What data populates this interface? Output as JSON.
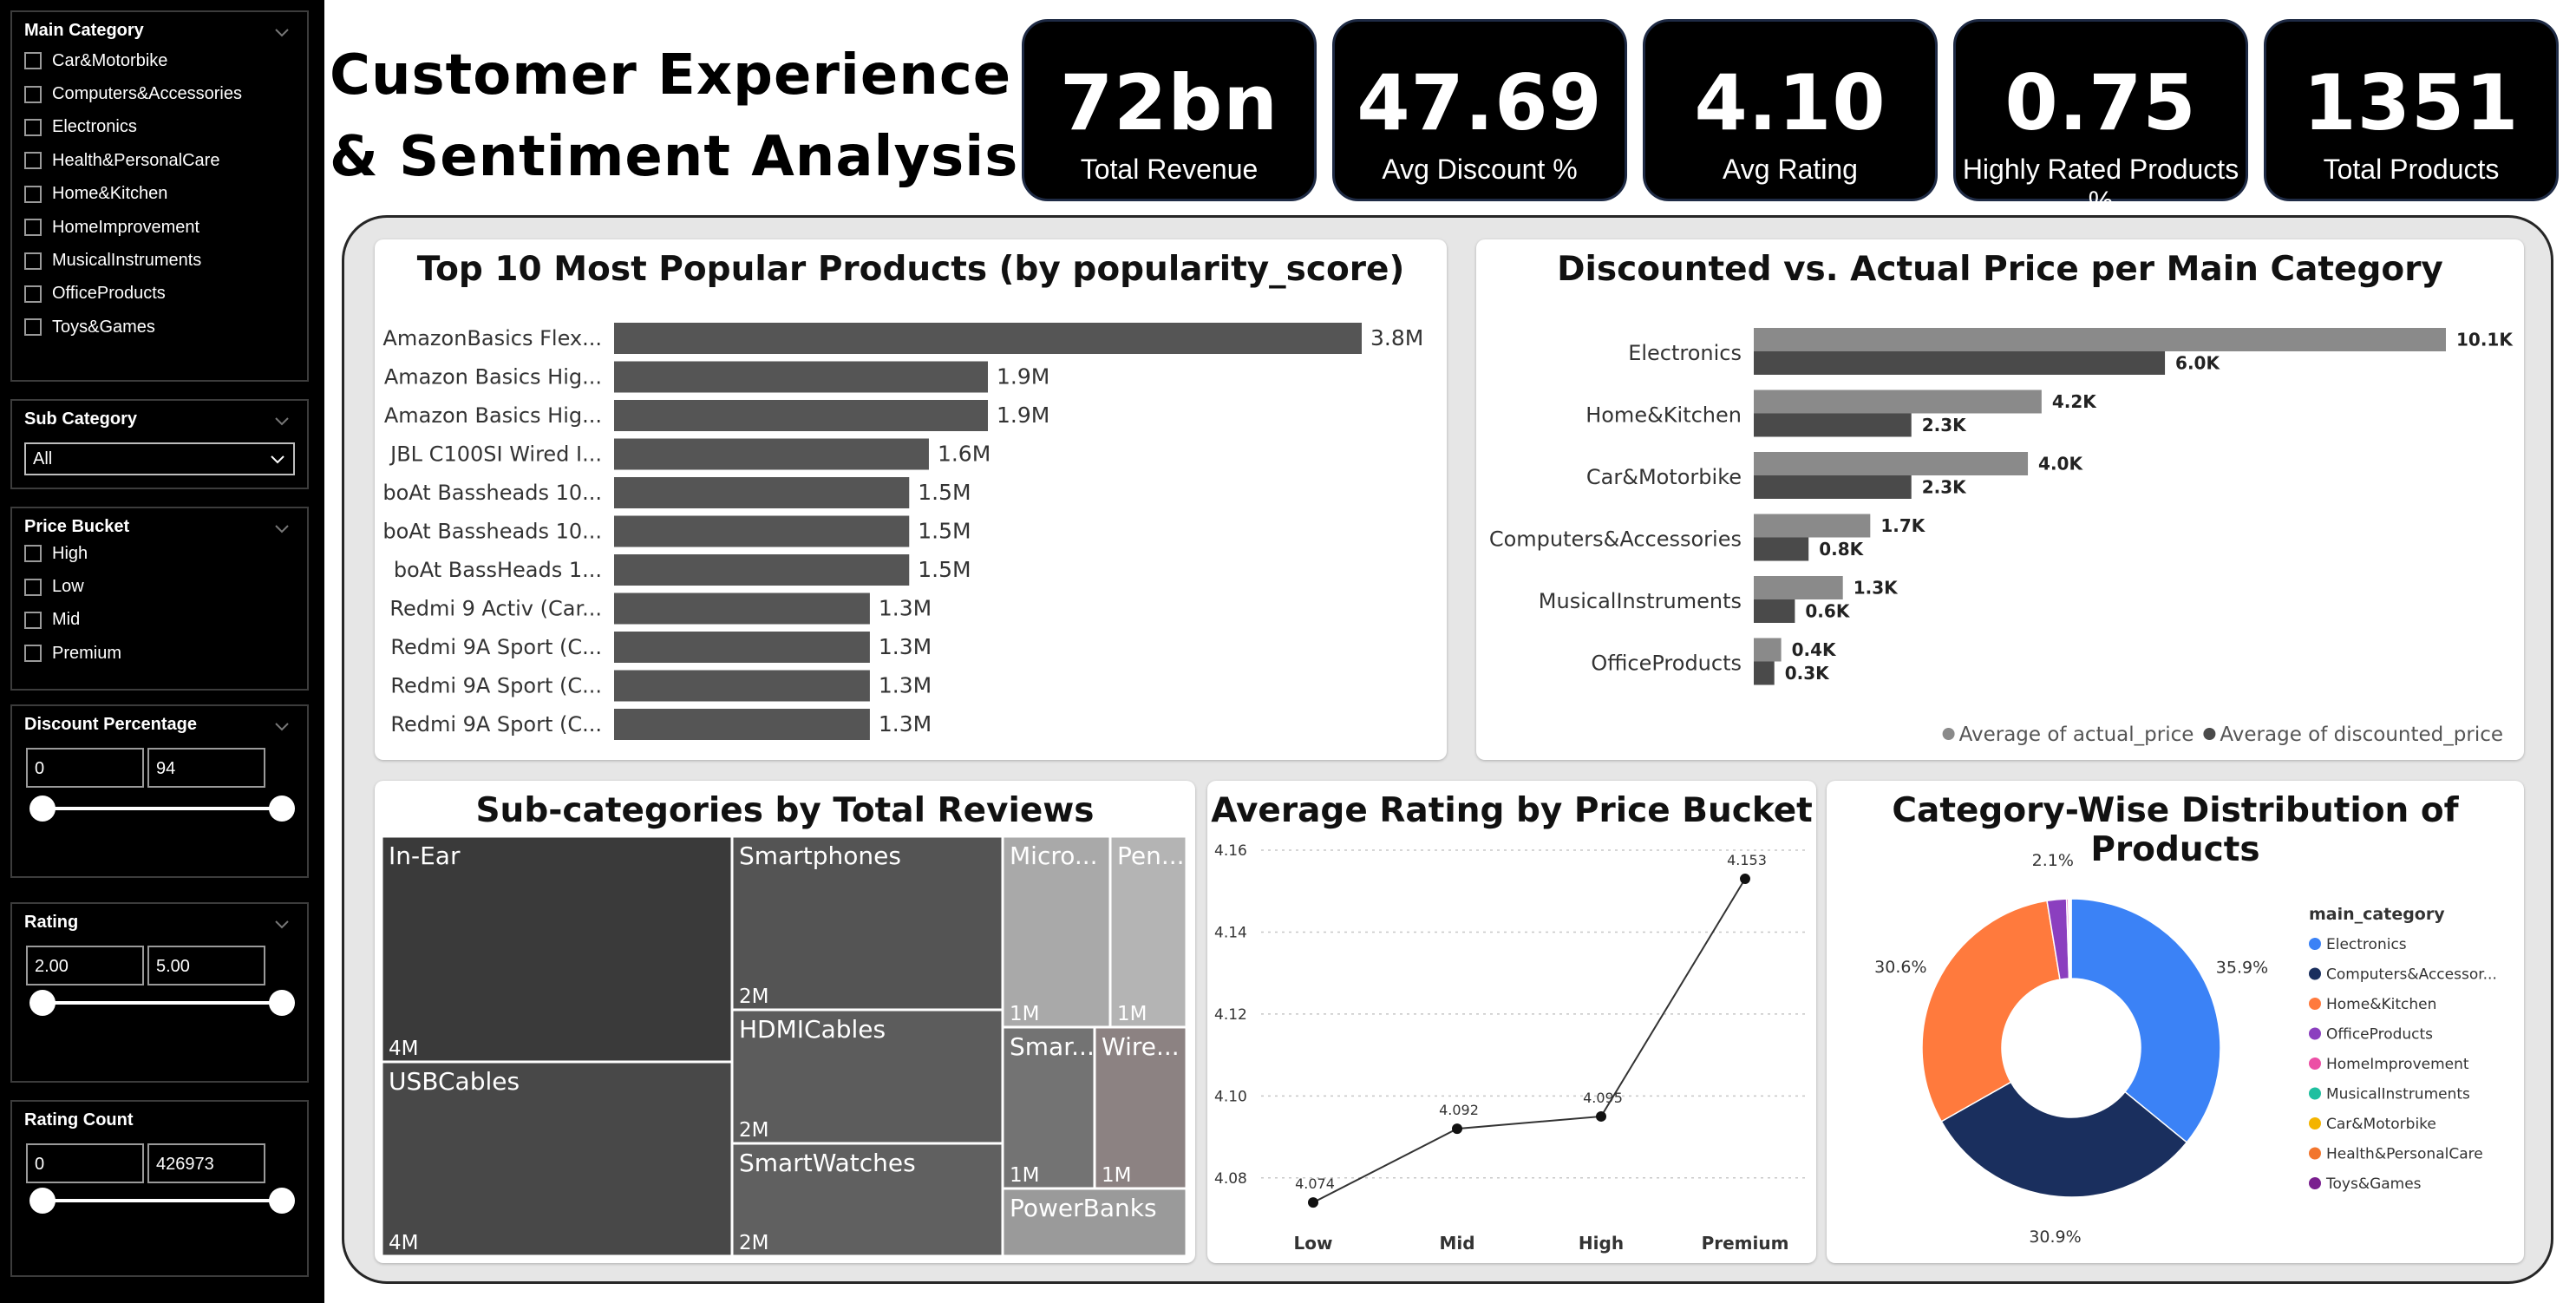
{
  "title": [
    "Customer Experience",
    "& Sentiment Analysis"
  ],
  "kpis": [
    {
      "value": "72bn",
      "label": "Total Revenue"
    },
    {
      "value": "47.69",
      "label": "Avg Discount %"
    },
    {
      "value": "4.10",
      "label": "Avg Rating"
    },
    {
      "value": "0.75",
      "label": "Highly Rated Products %"
    },
    {
      "value": "1351",
      "label": "Total Products"
    }
  ],
  "slicers": {
    "main_category": {
      "title": "Main Category",
      "items": [
        "Car&Motorbike",
        "Computers&Accessories",
        "Electronics",
        "Health&PersonalCare",
        "Home&Kitchen",
        "HomeImprovement",
        "MusicalInstruments",
        "OfficeProducts",
        "Toys&Games"
      ]
    },
    "sub_category": {
      "title": "Sub Category",
      "value": "All"
    },
    "price_bucket": {
      "title": "Price Bucket",
      "items": [
        "High",
        "Low",
        "Mid",
        "Premium"
      ]
    },
    "discount_percentage": {
      "title": "Discount Percentage",
      "min": "0",
      "max": "94"
    },
    "rating": {
      "title": "Rating",
      "min": "2.00",
      "max": "5.00"
    },
    "rating_count": {
      "title": "Rating Count",
      "min": "0",
      "max": "426973"
    }
  },
  "chart_data": [
    {
      "id": "popular",
      "type": "bar",
      "orientation": "horizontal",
      "title": "Top 10 Most Popular Products (by popularity_score)",
      "categories": [
        "AmazonBasics Flex...",
        "Amazon Basics Hig...",
        "Amazon Basics Hig...",
        "JBL C100SI Wired I...",
        "boAt Bassheads 10...",
        "boAt Bassheads 10...",
        "boAt BassHeads 1...",
        "Redmi 9 Activ (Car...",
        "Redmi 9A Sport (C...",
        "Redmi 9A Sport (C...",
        "Redmi 9A Sport (C..."
      ],
      "values": [
        3.8,
        1.9,
        1.9,
        1.6,
        1.5,
        1.5,
        1.5,
        1.3,
        1.3,
        1.3,
        1.3
      ],
      "labels": [
        "3.8M",
        "1.9M",
        "1.9M",
        "1.6M",
        "1.5M",
        "1.5M",
        "1.5M",
        "1.3M",
        "1.3M",
        "1.3M",
        "1.3M"
      ],
      "color": "#555555"
    },
    {
      "id": "price",
      "type": "bar",
      "orientation": "horizontal",
      "title": "Discounted vs. Actual Price per Main Category",
      "categories": [
        "Electronics",
        "Home&Kitchen",
        "Car&Motorbike",
        "Computers&Accessories",
        "MusicalInstruments",
        "OfficeProducts"
      ],
      "series": [
        {
          "name": "Average of actual_price",
          "values": [
            10.1,
            4.2,
            4.0,
            1.7,
            1.3,
            0.4
          ],
          "labels": [
            "10.1K",
            "4.2K",
            "4.0K",
            "1.7K",
            "1.3K",
            "0.4K"
          ],
          "color": "#8a8a8a"
        },
        {
          "name": "Average of discounted_price",
          "values": [
            6.0,
            2.3,
            2.3,
            0.8,
            0.6,
            0.3
          ],
          "labels": [
            "6.0K",
            "2.3K",
            "2.3K",
            "0.8K",
            "0.6K",
            "0.3K"
          ],
          "color": "#4a4a4a"
        }
      ],
      "legend": "bottom-right"
    },
    {
      "id": "treemap",
      "type": "treemap",
      "title": "Sub-categories by Total Reviews",
      "items": [
        {
          "name": "In-Ear",
          "label": "4M",
          "color": "#3a3a3a"
        },
        {
          "name": "USBCables",
          "label": "4M",
          "color": "#484848"
        },
        {
          "name": "Smartphones",
          "label": "2M",
          "color": "#545454"
        },
        {
          "name": "HDMICables",
          "label": "2M",
          "color": "#5c5c5c"
        },
        {
          "name": "SmartWatches",
          "label": "2M",
          "color": "#606060"
        },
        {
          "name": "Micro...",
          "label": "1M",
          "color": "#a9a9a9"
        },
        {
          "name": "Pen...",
          "label": "1M",
          "color": "#b4b4b4"
        },
        {
          "name": "Smar...",
          "label": "1M",
          "color": "#737373"
        },
        {
          "name": "Wire...",
          "label": "1M",
          "color": "#8c8282"
        },
        {
          "name": "PowerBanks",
          "label": "",
          "color": "#9a9a9a"
        }
      ]
    },
    {
      "id": "rating",
      "type": "line",
      "title": "Average Rating by Price Bucket",
      "categories": [
        "Low",
        "Mid",
        "High",
        "Premium"
      ],
      "values": [
        4.074,
        4.092,
        4.095,
        4.153
      ],
      "labels": [
        "4.074",
        "4.092",
        "4.095",
        "4.153"
      ],
      "ylim": [
        4.07,
        4.16
      ],
      "yticks": [
        "4.08",
        "4.10",
        "4.12",
        "4.14",
        "4.16"
      ],
      "ytick_values": [
        4.08,
        4.1,
        4.12,
        4.14,
        4.16
      ],
      "grid": true
    },
    {
      "id": "donut",
      "type": "pie",
      "title": "Category-Wise Distribution of Products",
      "legend_title": "main_category",
      "legend": "right",
      "slices": [
        {
          "name": "Electronics",
          "value": 35.9,
          "label": "35.9%",
          "color": "#3b82f6"
        },
        {
          "name": "Computers&Accessor...",
          "value": 30.9,
          "label": "30.9%",
          "color": "#1a2f5e"
        },
        {
          "name": "Home&Kitchen",
          "value": 30.6,
          "label": "30.6%",
          "color": "#ff7a3d"
        },
        {
          "name": "OfficeProducts",
          "value": 2.1,
          "label": "2.1%",
          "color": "#8b3fbf"
        },
        {
          "name": "HomeImprovement",
          "value": 0.2,
          "label": "",
          "color": "#ec4fa5"
        },
        {
          "name": "MusicalInstruments",
          "value": 0.1,
          "label": "",
          "color": "#1fbfa0"
        },
        {
          "name": "Car&Motorbike",
          "value": 0.1,
          "label": "",
          "color": "#f4b400"
        },
        {
          "name": "Health&PersonalCare",
          "value": 0.1,
          "label": "",
          "color": "#f2762e"
        },
        {
          "name": "Toys&Games",
          "value": 0.0,
          "label": "",
          "color": "#7a1f8f"
        }
      ]
    }
  ]
}
